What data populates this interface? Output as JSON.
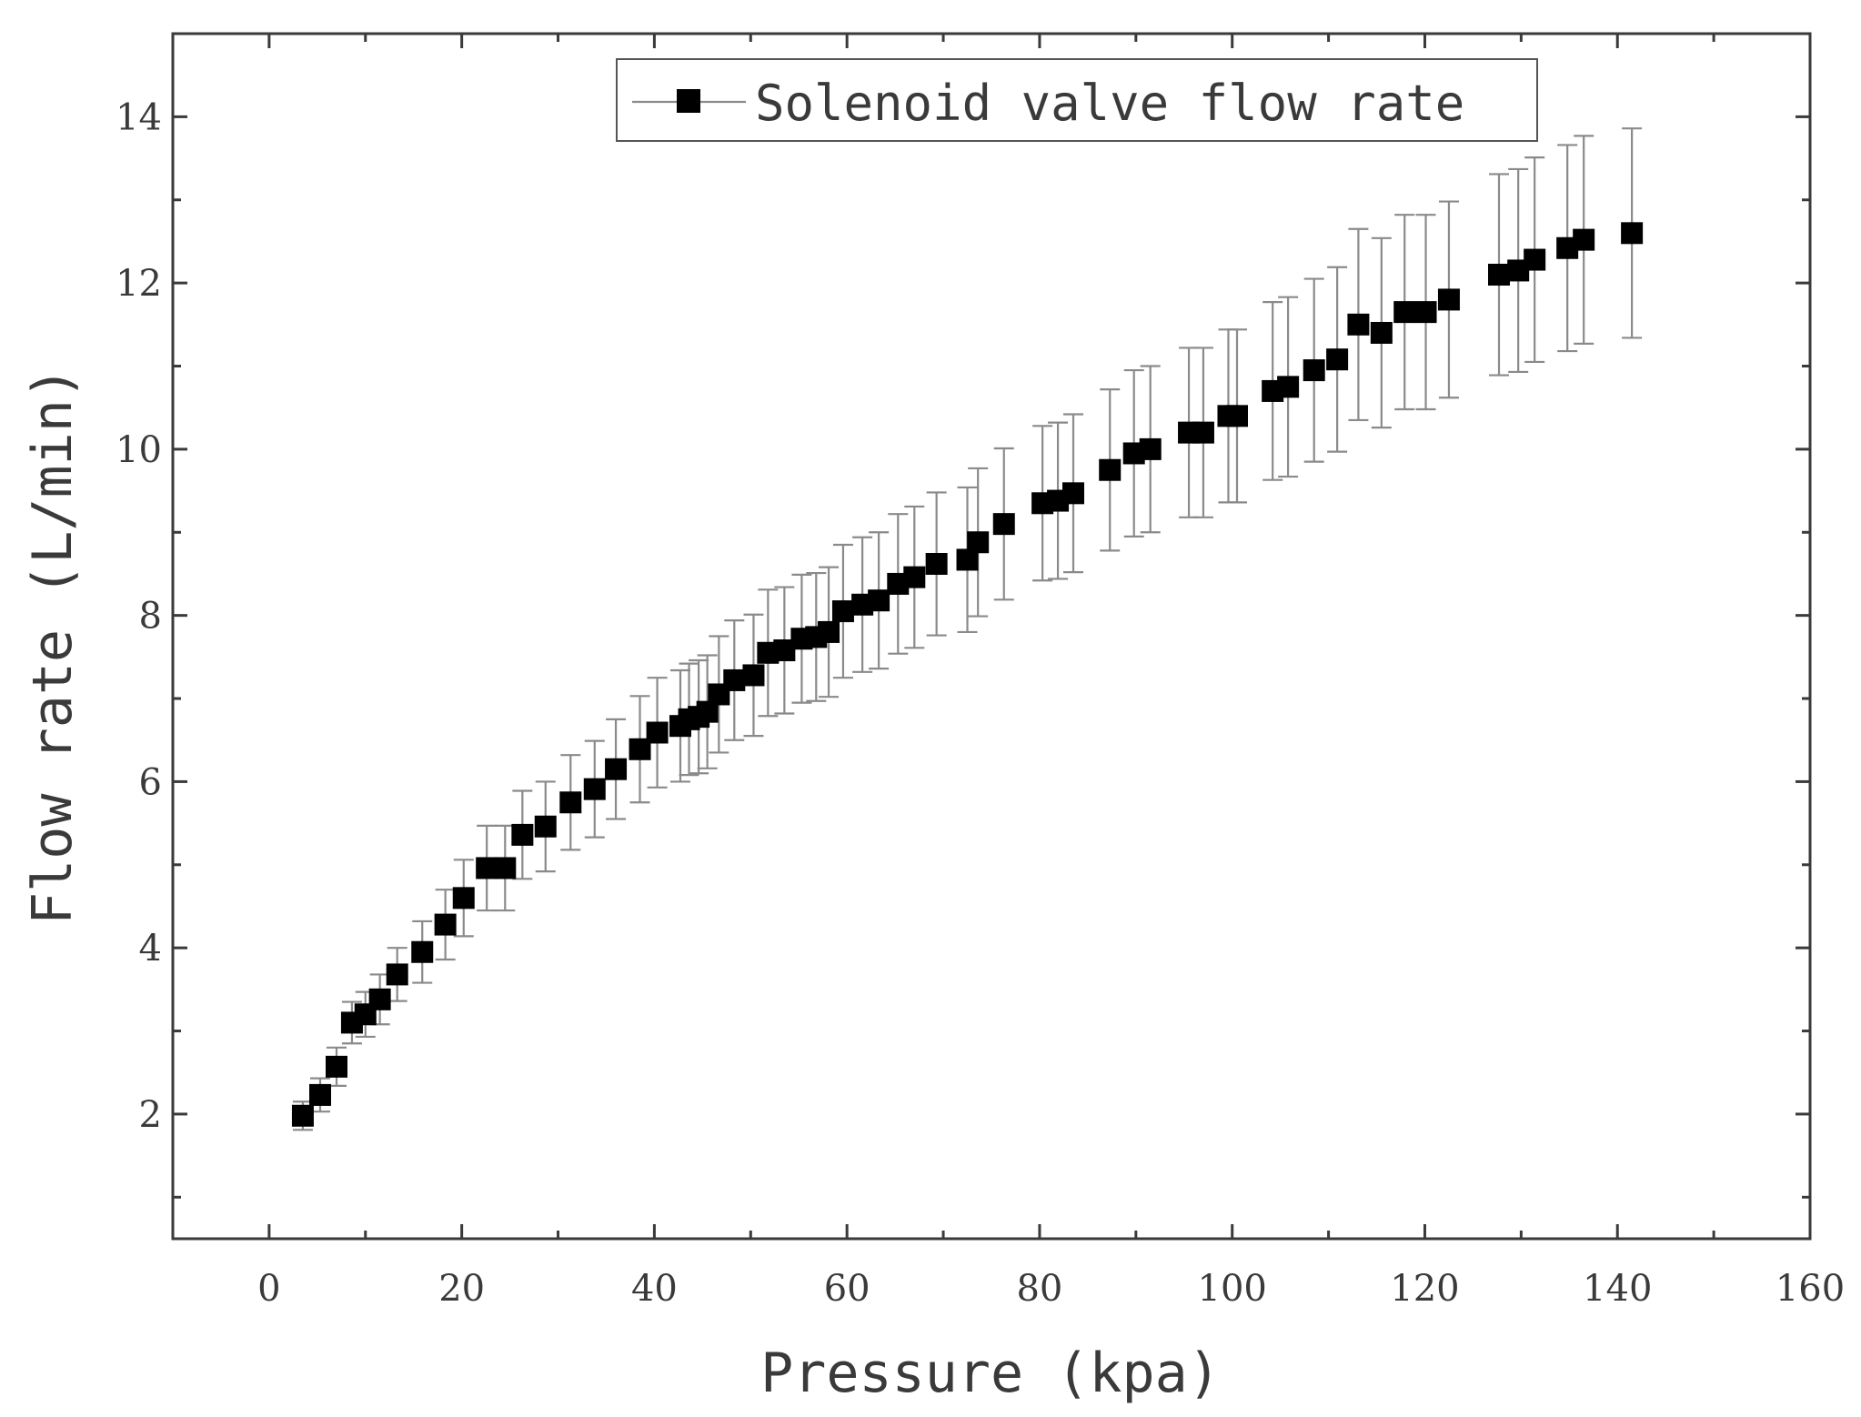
{
  "chart_data": {
    "type": "scatter",
    "title": "",
    "xlabel": "Pressure (kpa)",
    "ylabel": "Flow rate (L/min)",
    "xlim": [
      -10,
      160
    ],
    "ylim": [
      0.5,
      15
    ],
    "x_ticks": [
      0,
      20,
      40,
      60,
      80,
      100,
      120,
      140,
      160
    ],
    "y_ticks": [
      2,
      4,
      6,
      8,
      10,
      12,
      14
    ],
    "legend": {
      "position": "top-center",
      "entries": [
        "Solenoid valve flow rate"
      ]
    },
    "series": [
      {
        "name": "Solenoid valve flow rate",
        "marker": "square",
        "color": "#000000",
        "errorbar_color": "#8a8a8a",
        "x": [
          3.5,
          5.3,
          7,
          8.6,
          10,
          11.5,
          13.3,
          15.9,
          18.3,
          20.2,
          22.6,
          24.5,
          26.3,
          28.7,
          31.3,
          33.8,
          36,
          38.5,
          40.3,
          42.7,
          43.6,
          44.6,
          45.5,
          46.7,
          48.3,
          50.3,
          51.8,
          53.5,
          55.3,
          56.8,
          58.1,
          59.6,
          61.6,
          63.3,
          65.3,
          67,
          69.3,
          72.5,
          73.6,
          76.3,
          80.3,
          81.9,
          83.5,
          87.3,
          89.8,
          91.5,
          95.5,
          97,
          99.6,
          100.5,
          104.2,
          105.8,
          108.5,
          110.9,
          113.1,
          115.5,
          117.9,
          120.1,
          122.5,
          127.7,
          129.7,
          131.4,
          134.8,
          136.5,
          141.5
        ],
        "y": [
          1.98,
          2.23,
          2.57,
          3.1,
          3.2,
          3.38,
          3.68,
          3.95,
          4.28,
          4.6,
          4.96,
          4.96,
          5.36,
          5.46,
          5.75,
          5.91,
          6.15,
          6.39,
          6.59,
          6.67,
          6.75,
          6.78,
          6.84,
          7.05,
          7.22,
          7.28,
          7.55,
          7.58,
          7.72,
          7.74,
          7.8,
          8.05,
          8.13,
          8.18,
          8.38,
          8.46,
          8.62,
          8.67,
          8.88,
          9.1,
          9.35,
          9.38,
          9.47,
          9.75,
          9.95,
          10.0,
          10.2,
          10.2,
          10.4,
          10.4,
          10.7,
          10.75,
          10.95,
          11.08,
          11.5,
          11.4,
          11.65,
          11.65,
          11.8,
          12.1,
          12.15,
          12.28,
          12.42,
          12.52,
          12.6
        ],
        "error": [
          0.17,
          0.2,
          0.23,
          0.25,
          0.27,
          0.3,
          0.32,
          0.37,
          0.42,
          0.46,
          0.51,
          0.51,
          0.53,
          0.54,
          0.57,
          0.58,
          0.6,
          0.64,
          0.66,
          0.67,
          0.67,
          0.68,
          0.68,
          0.7,
          0.72,
          0.73,
          0.76,
          0.76,
          0.77,
          0.77,
          0.78,
          0.8,
          0.81,
          0.82,
          0.84,
          0.85,
          0.86,
          0.87,
          0.89,
          0.91,
          0.93,
          0.94,
          0.95,
          0.97,
          1.0,
          1.0,
          1.02,
          1.02,
          1.04,
          1.04,
          1.07,
          1.08,
          1.1,
          1.11,
          1.15,
          1.14,
          1.17,
          1.17,
          1.18,
          1.21,
          1.22,
          1.23,
          1.24,
          1.25,
          1.26
        ]
      }
    ]
  }
}
